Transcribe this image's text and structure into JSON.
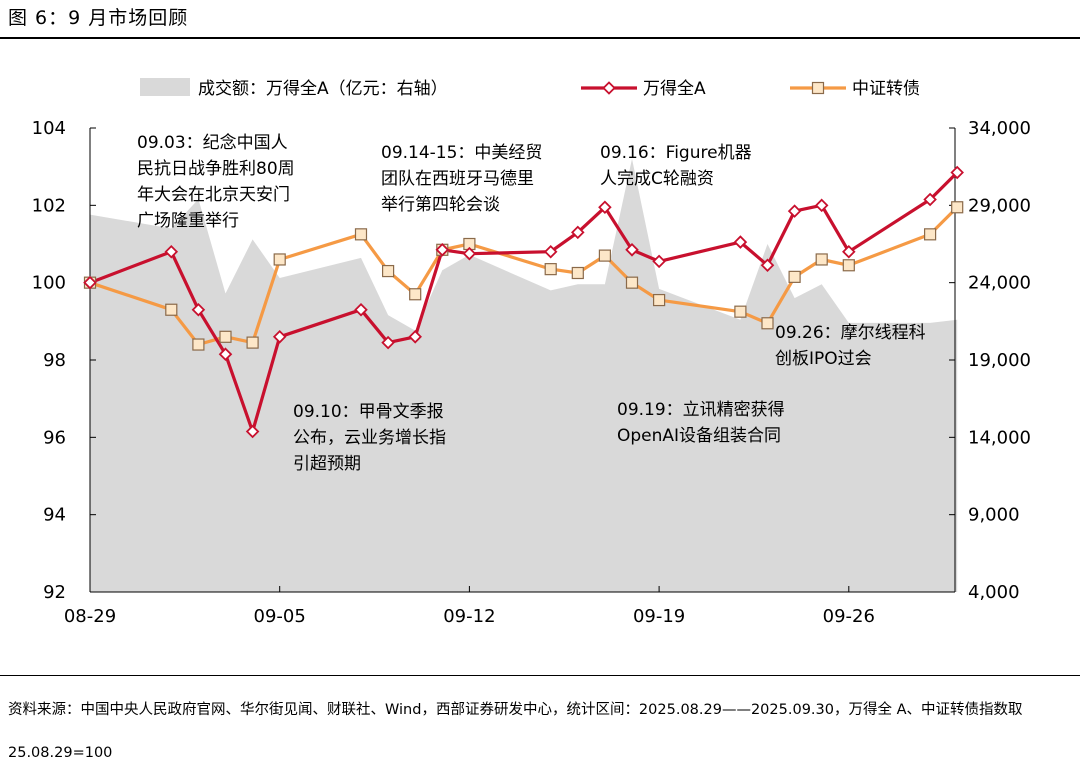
{
  "figure": {
    "title": "图 6：9 月市场回顾",
    "source_note": "资料来源：中国中央人民政府官网、华尔街见闻、财联社、Wind，西部证券研发中心，统计区间：2025.08.29——2025.09.30，万得全 A、中证转债指数取 25.08.29=100"
  },
  "chart_data": {
    "type": "line",
    "legend": {
      "placement": "top",
      "items": [
        "成交额：万得全A（亿元：右轴）",
        "万得全A",
        "中证转债"
      ]
    },
    "x_ticks": [
      "08-29",
      "09-05",
      "09-12",
      "09-19",
      "09-26"
    ],
    "left_axis": {
      "ylim": [
        92,
        104
      ],
      "ticks": [
        "104",
        "102",
        "100",
        "98",
        "96",
        "94",
        "92"
      ]
    },
    "right_axis": {
      "ylim": [
        4000,
        34000
      ],
      "ticks": [
        "34,000",
        "29,000",
        "24,000",
        "19,000",
        "14,000",
        "9,000",
        "4,000"
      ]
    },
    "dates": [
      "08-29",
      "09-01",
      "09-02",
      "09-03",
      "09-04",
      "09-05",
      "09-08",
      "09-09",
      "09-10",
      "09-11",
      "09-12",
      "09-15",
      "09-16",
      "09-17",
      "09-18",
      "09-19",
      "09-22",
      "09-23",
      "09-24",
      "09-25",
      "09-26",
      "09-29",
      "09-30"
    ],
    "series": [
      {
        "name": "成交额：万得全A（亿元：右轴）",
        "kind": "area",
        "axis": "right",
        "color": "#d9d9d9",
        "values": [
          28400,
          27500,
          29400,
          23300,
          26800,
          24300,
          25600,
          21900,
          20900,
          24800,
          25800,
          23500,
          23900,
          23900,
          32000,
          23600,
          21600,
          26500,
          23000,
          23900,
          21400,
          21400,
          21600
        ]
      },
      {
        "name": "万得全A",
        "kind": "line",
        "axis": "left",
        "color": "#c8102e",
        "marker": "diamond",
        "values": [
          100.0,
          100.8,
          99.3,
          98.15,
          96.15,
          98.6,
          99.3,
          98.45,
          98.6,
          100.85,
          100.75,
          100.8,
          101.3,
          101.95,
          100.85,
          100.55,
          101.05,
          100.45,
          101.85,
          102.0,
          100.8,
          102.15,
          102.85
        ]
      },
      {
        "name": "中证转债",
        "kind": "line",
        "axis": "left",
        "color": "#f59a45",
        "marker": "square",
        "values": [
          100.0,
          99.3,
          98.4,
          98.6,
          98.45,
          100.6,
          101.25,
          100.3,
          99.7,
          100.85,
          101.0,
          100.35,
          100.25,
          100.7,
          100.0,
          99.55,
          99.25,
          98.95,
          100.15,
          100.6,
          100.45,
          101.25,
          101.95
        ]
      }
    ],
    "annotations": [
      {
        "lines": [
          "09.03：纪念中国人",
          "民抗日战争胜利80周",
          "年大会在北京天安门",
          "广场隆重举行"
        ]
      },
      {
        "lines": [
          "09.14-15：中美经贸",
          "团队在西班牙马德里",
          "举行第四轮会谈"
        ]
      },
      {
        "lines": [
          "09.16：Figure机器",
          "人完成C轮融资"
        ]
      },
      {
        "lines": [
          "09.10：甲骨文季报",
          "公布，云业务增长指",
          "引超预期"
        ]
      },
      {
        "lines": [
          "09.19：立讯精密获得",
          "OpenAI设备组装合同"
        ]
      },
      {
        "lines": [
          "09.26：摩尔线程科",
          "创板IPO过会"
        ]
      }
    ]
  }
}
